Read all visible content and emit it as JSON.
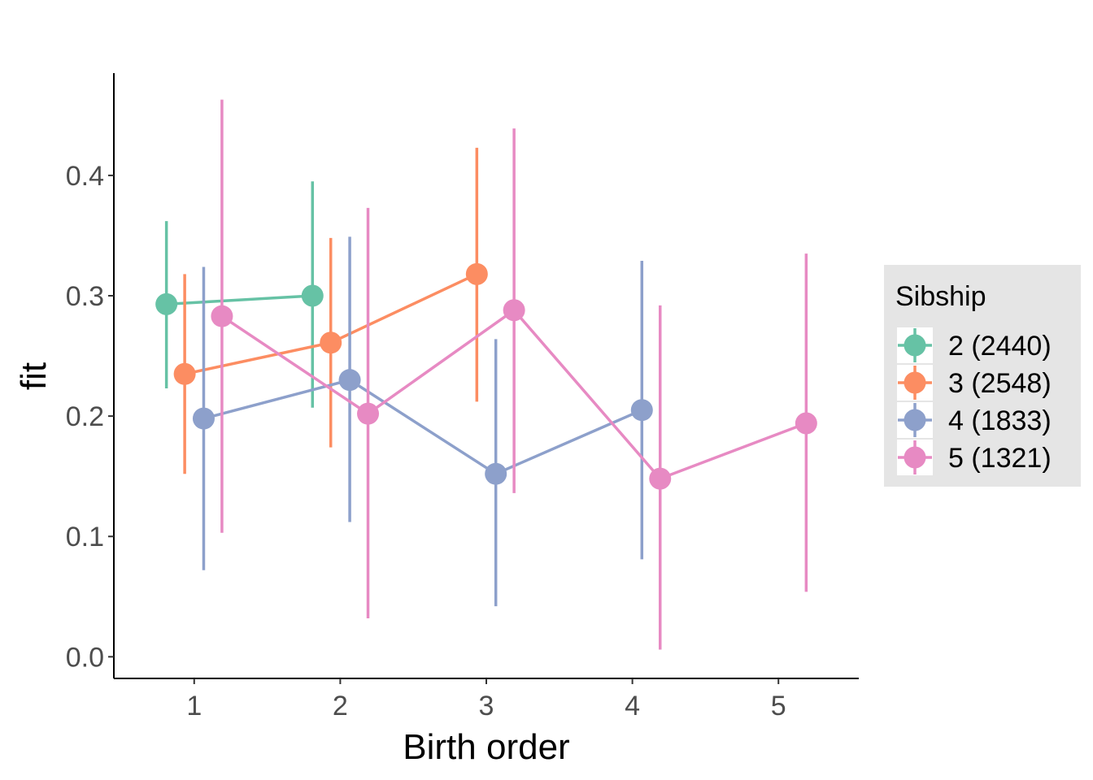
{
  "chart_data": {
    "type": "line",
    "xlabel": "Birth order",
    "ylabel": "fit",
    "xlim": [
      0.45,
      5.55
    ],
    "ylim": [
      -0.018,
      0.485
    ],
    "x_ticks": [
      "1",
      "2",
      "3",
      "4",
      "5"
    ],
    "y_ticks": [
      "0.0",
      "0.1",
      "0.2",
      "0.3",
      "0.4"
    ],
    "grid": false,
    "legend": {
      "title": "Sibship",
      "placement": "right"
    },
    "series": [
      {
        "name": "2 (2440)",
        "color": "#66C2A5",
        "points": [
          {
            "x": 1,
            "y": 0.293,
            "lo": 0.223,
            "hi": 0.362
          },
          {
            "x": 2,
            "y": 0.3,
            "lo": 0.207,
            "hi": 0.395
          }
        ]
      },
      {
        "name": "3 (2548)",
        "color": "#FC8D62",
        "points": [
          {
            "x": 1,
            "y": 0.235,
            "lo": 0.152,
            "hi": 0.318
          },
          {
            "x": 2,
            "y": 0.261,
            "lo": 0.174,
            "hi": 0.348
          },
          {
            "x": 3,
            "y": 0.318,
            "lo": 0.212,
            "hi": 0.423
          }
        ]
      },
      {
        "name": "4 (1833)",
        "color": "#8DA0CB",
        "points": [
          {
            "x": 1,
            "y": 0.198,
            "lo": 0.072,
            "hi": 0.324
          },
          {
            "x": 2,
            "y": 0.23,
            "lo": 0.112,
            "hi": 0.349
          },
          {
            "x": 3,
            "y": 0.152,
            "lo": 0.042,
            "hi": 0.264
          },
          {
            "x": 4,
            "y": 0.205,
            "lo": 0.081,
            "hi": 0.329
          }
        ]
      },
      {
        "name": "5 (1321)",
        "color": "#E78AC3",
        "points": [
          {
            "x": 1,
            "y": 0.283,
            "lo": 0.103,
            "hi": 0.463
          },
          {
            "x": 2,
            "y": 0.202,
            "lo": 0.032,
            "hi": 0.373
          },
          {
            "x": 3,
            "y": 0.288,
            "lo": 0.136,
            "hi": 0.439
          },
          {
            "x": 4,
            "y": 0.148,
            "lo": 0.006,
            "hi": 0.292
          },
          {
            "x": 5,
            "y": 0.194,
            "lo": 0.054,
            "hi": 0.335
          }
        ]
      }
    ]
  }
}
